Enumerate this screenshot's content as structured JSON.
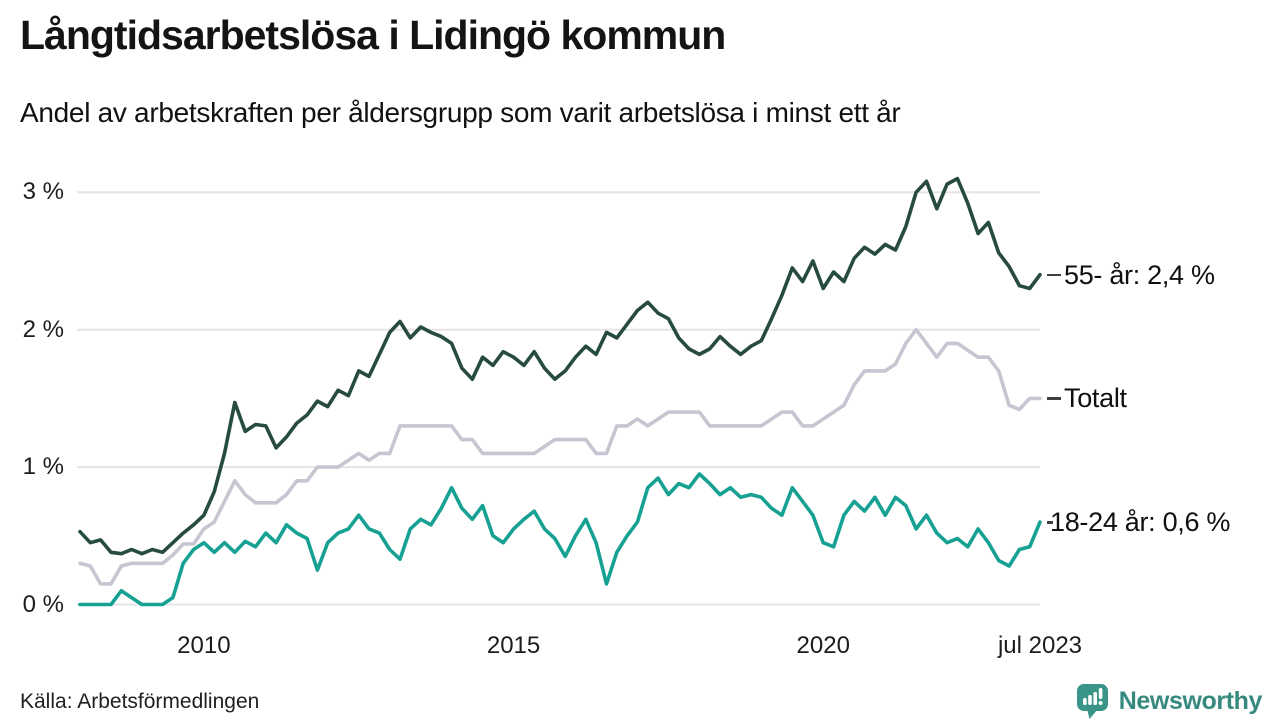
{
  "header": {
    "title": "Långtidsarbetslösa i Lidingö kommun",
    "subtitle": "Andel av arbetskraften per åldersgrupp som varit arbetslösa i minst ett år"
  },
  "footer": {
    "source": "Källa: Arbetsförmedlingen",
    "brand": "Newsworthy",
    "brand_icon": "newsworthy-speech-bubble-chart-icon",
    "brand_color": "#3a9488"
  },
  "chart_data": {
    "type": "line",
    "title": "Långtidsarbetslösa i Lidingö kommun",
    "subtitle": "Andel av arbetskraften per åldersgrupp som varit arbetslösa i minst ett år",
    "unit": "%",
    "grid": true,
    "legend_position": "right-of-line-ends",
    "xlim": [
      2008.0,
      2023.5
    ],
    "ylim": [
      0,
      3.2
    ],
    "x_start": 2008.0,
    "x_step_years": 0.16667,
    "x_interval_note": "one value every 2 months, jan 2008 - jul 2023",
    "x_ticks": [
      {
        "t": 2010.0,
        "label": "2010"
      },
      {
        "t": 2015.0,
        "label": "2015"
      },
      {
        "t": 2020.0,
        "label": "2020"
      },
      {
        "t": 2023.5,
        "label": "jul 2023"
      }
    ],
    "y_ticks": [
      {
        "v": 0,
        "label": "0 %"
      },
      {
        "v": 1,
        "label": "1 %"
      },
      {
        "v": 2,
        "label": "2 %"
      },
      {
        "v": 3,
        "label": "3 %"
      }
    ],
    "grid_color": "#e5e5e5",
    "series": [
      {
        "name": "55- år",
        "end_label": "55- år: 2,4 %",
        "end_value_text": "2,4 %",
        "color": "#274b40",
        "values": [
          0.53,
          0.45,
          0.47,
          0.38,
          0.37,
          0.4,
          0.37,
          0.4,
          0.38,
          0.45,
          0.52,
          0.58,
          0.65,
          0.82,
          1.1,
          1.47,
          1.26,
          1.31,
          1.3,
          1.14,
          1.22,
          1.32,
          1.38,
          1.48,
          1.44,
          1.56,
          1.52,
          1.7,
          1.66,
          1.82,
          1.98,
          2.06,
          1.94,
          2.02,
          1.98,
          1.95,
          1.9,
          1.72,
          1.64,
          1.8,
          1.74,
          1.84,
          1.8,
          1.74,
          1.84,
          1.72,
          1.64,
          1.7,
          1.8,
          1.88,
          1.82,
          1.98,
          1.94,
          2.04,
          2.14,
          2.2,
          2.12,
          2.08,
          1.94,
          1.86,
          1.82,
          1.86,
          1.95,
          1.88,
          1.82,
          1.88,
          1.92,
          2.08,
          2.25,
          2.45,
          2.35,
          2.5,
          2.3,
          2.42,
          2.35,
          2.52,
          2.6,
          2.55,
          2.62,
          2.58,
          2.75,
          3.0,
          3.08,
          2.88,
          3.06,
          3.1,
          2.92,
          2.7,
          2.78,
          2.56,
          2.46,
          2.32,
          2.3,
          2.4
        ]
      },
      {
        "name": "Totalt",
        "end_label": "Totalt",
        "end_value_text": "",
        "color": "#c7c5d1",
        "values": [
          0.3,
          0.28,
          0.15,
          0.15,
          0.28,
          0.3,
          0.3,
          0.3,
          0.3,
          0.36,
          0.44,
          0.44,
          0.55,
          0.6,
          0.75,
          0.9,
          0.8,
          0.74,
          0.74,
          0.74,
          0.8,
          0.9,
          0.9,
          1.0,
          1.0,
          1.0,
          1.05,
          1.1,
          1.05,
          1.1,
          1.1,
          1.3,
          1.3,
          1.3,
          1.3,
          1.3,
          1.3,
          1.2,
          1.2,
          1.1,
          1.1,
          1.1,
          1.1,
          1.1,
          1.1,
          1.15,
          1.2,
          1.2,
          1.2,
          1.2,
          1.1,
          1.1,
          1.3,
          1.3,
          1.35,
          1.3,
          1.35,
          1.4,
          1.4,
          1.4,
          1.4,
          1.3,
          1.3,
          1.3,
          1.3,
          1.3,
          1.3,
          1.35,
          1.4,
          1.4,
          1.3,
          1.3,
          1.35,
          1.4,
          1.45,
          1.6,
          1.7,
          1.7,
          1.7,
          1.75,
          1.9,
          2.0,
          1.9,
          1.8,
          1.9,
          1.9,
          1.85,
          1.8,
          1.8,
          1.7,
          1.45,
          1.42,
          1.5,
          1.5
        ]
      },
      {
        "name": "18-24 år",
        "end_label": "18-24 år: 0,6 %",
        "end_value_text": "0,6 %",
        "color": "#17a193",
        "values": [
          0.0,
          0.0,
          0.0,
          0.0,
          0.1,
          0.05,
          0.0,
          0.0,
          0.0,
          0.05,
          0.3,
          0.4,
          0.45,
          0.38,
          0.45,
          0.38,
          0.46,
          0.42,
          0.52,
          0.45,
          0.58,
          0.52,
          0.48,
          0.25,
          0.45,
          0.52,
          0.55,
          0.65,
          0.55,
          0.52,
          0.4,
          0.33,
          0.55,
          0.62,
          0.58,
          0.7,
          0.85,
          0.7,
          0.62,
          0.72,
          0.5,
          0.45,
          0.55,
          0.62,
          0.68,
          0.55,
          0.48,
          0.35,
          0.5,
          0.62,
          0.45,
          0.15,
          0.38,
          0.5,
          0.6,
          0.85,
          0.92,
          0.8,
          0.88,
          0.85,
          0.95,
          0.88,
          0.8,
          0.85,
          0.78,
          0.8,
          0.78,
          0.7,
          0.65,
          0.85,
          0.75,
          0.65,
          0.45,
          0.42,
          0.65,
          0.75,
          0.68,
          0.78,
          0.65,
          0.78,
          0.72,
          0.55,
          0.65,
          0.52,
          0.45,
          0.48,
          0.42,
          0.55,
          0.45,
          0.32,
          0.28,
          0.4,
          0.42,
          0.6
        ]
      }
    ]
  }
}
